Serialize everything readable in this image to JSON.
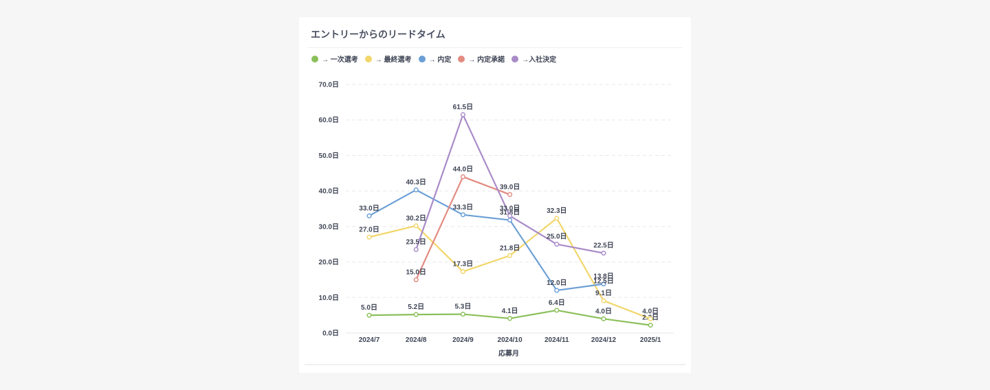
{
  "chart_data": {
    "type": "line",
    "title": "エントリーからのリードタイム",
    "xlabel": "応募月",
    "ylabel": "",
    "ylim": [
      0,
      70
    ],
    "ytick_step": 10,
    "y_unit": "日",
    "categories": [
      "2024/7",
      "2024/8",
      "2024/9",
      "2024/10",
      "2024/11",
      "2024/12",
      "2025/1"
    ],
    "legend_position": "top-left",
    "series": [
      {
        "name": "→ 一次選考",
        "color": "#8bbf5a",
        "values": [
          5.0,
          5.2,
          5.3,
          4.1,
          6.4,
          4.0,
          2.2
        ]
      },
      {
        "name": "→ 最終選考",
        "color": "#f2d66b",
        "values": [
          27.0,
          30.2,
          17.3,
          21.8,
          32.3,
          9.1,
          4.0
        ]
      },
      {
        "name": "→ 内定",
        "color": "#6b9fd6",
        "values": [
          33.0,
          40.3,
          33.3,
          31.8,
          12.0,
          13.8,
          null
        ]
      },
      {
        "name": "→ 内定承諾",
        "color": "#e38b80",
        "values": [
          null,
          15.0,
          44.0,
          39.0,
          null,
          null,
          null
        ]
      },
      {
        "name": "→入社決定",
        "color": "#a98bc8",
        "values": [
          null,
          23.5,
          61.5,
          33.0,
          25.0,
          22.5,
          null
        ]
      }
    ],
    "extra_labels": [
      {
        "category_index": 5,
        "value": 12.5,
        "text": "12.5日",
        "color": "#3f4555"
      }
    ]
  }
}
